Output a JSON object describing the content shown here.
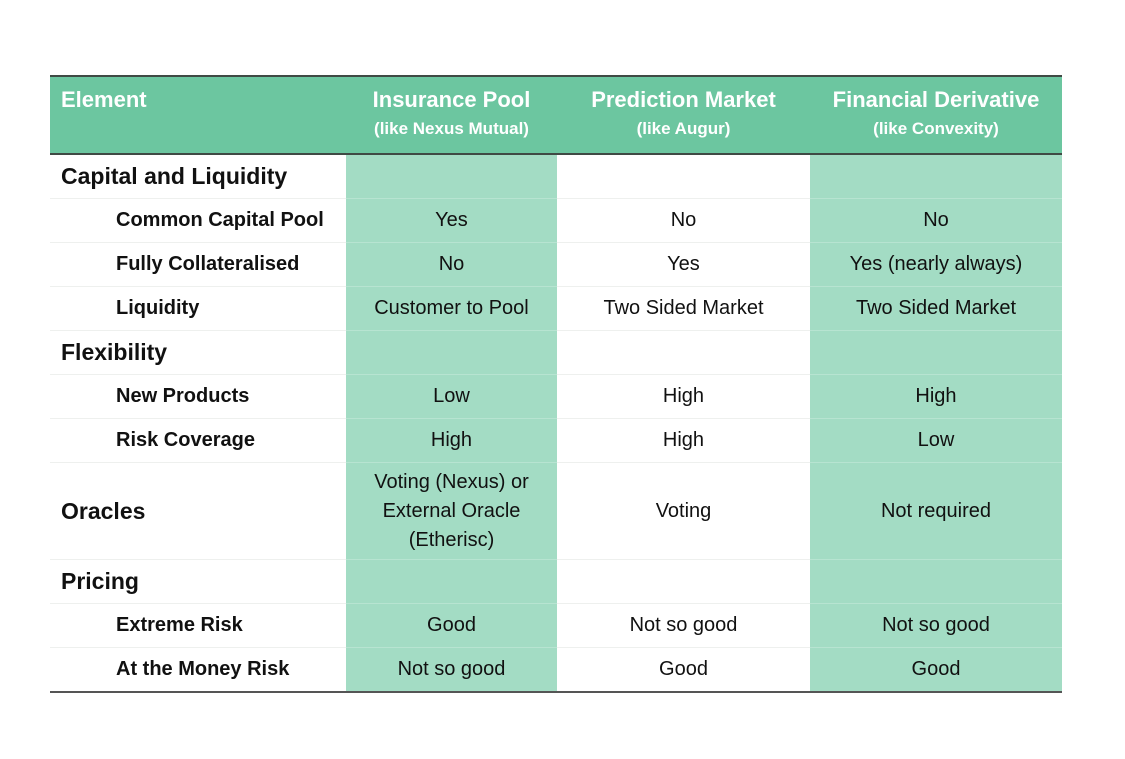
{
  "table": {
    "columns": [
      {
        "title": "Element"
      },
      {
        "title": "Insurance Pool",
        "subtitle": "(like Nexus Mutual)"
      },
      {
        "title": "Prediction Market",
        "subtitle": "(like Augur)"
      },
      {
        "title": "Financial Derivative",
        "subtitle": "(like Convexity)"
      }
    ],
    "sections": [
      {
        "title": "Capital and Liquidity",
        "rows": [
          [
            "Common Capital Pool",
            "Yes",
            "No",
            "No"
          ],
          [
            "Fully Collateralised",
            "No",
            "Yes",
            "Yes (nearly always)"
          ],
          [
            "Liquidity",
            "Customer to Pool",
            "Two Sided Market",
            "Two Sided Market"
          ]
        ]
      },
      {
        "title": "Flexibility",
        "rows": [
          [
            "New Products",
            "Low",
            "High",
            "High"
          ],
          [
            "Risk Coverage",
            "High",
            "High",
            "Low"
          ]
        ]
      },
      {
        "title": "Oracles",
        "cells": [
          "Voting (Nexus) or External Oracle (Etherisc)",
          "Voting",
          "Not required"
        ]
      },
      {
        "title": "Pricing",
        "rows": [
          [
            "Extreme Risk",
            "Good",
            "Not so good",
            "Not so good"
          ],
          [
            "At the Money Risk",
            "Not so good",
            "Good",
            "Good"
          ]
        ]
      }
    ]
  }
}
